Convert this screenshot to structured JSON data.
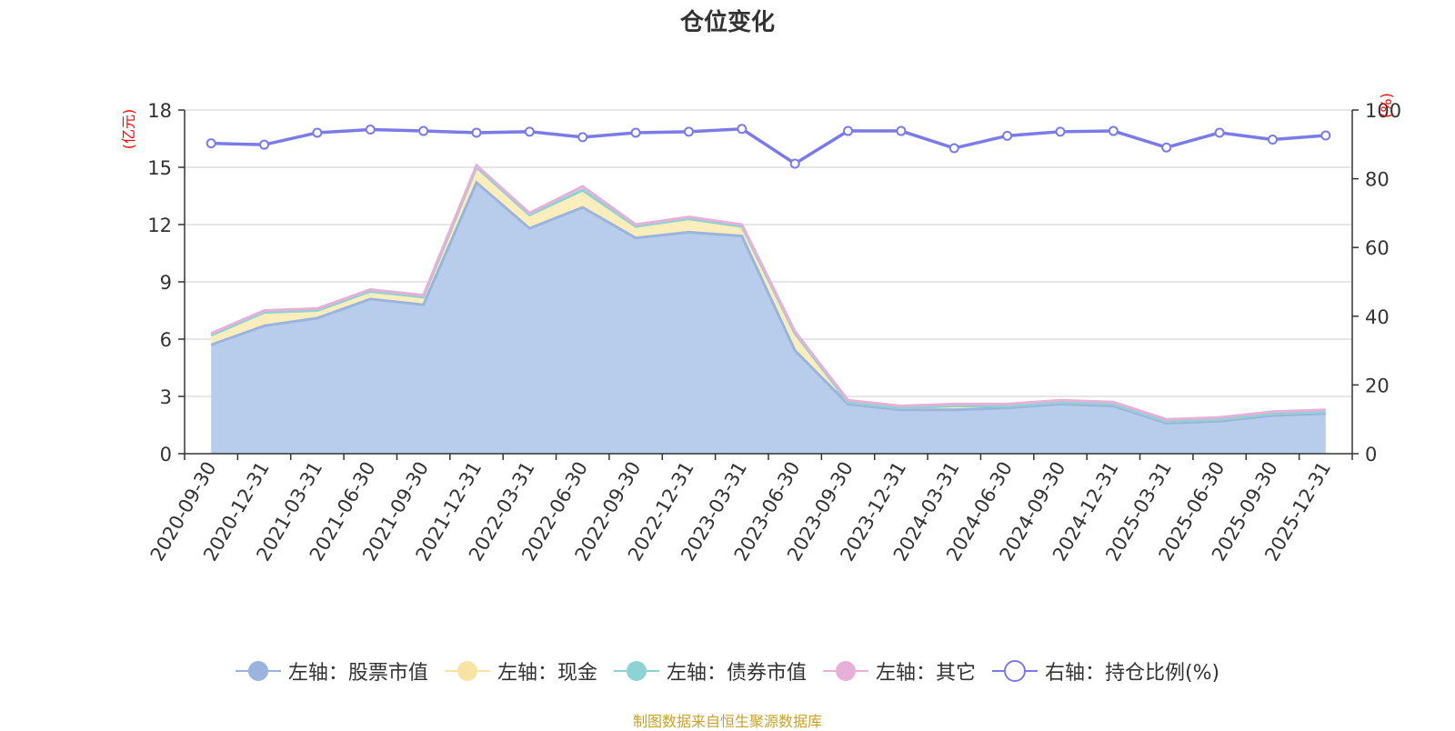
{
  "title": "仓位变化",
  "source": "制图数据来自恒生聚源数据库",
  "left_unit": "(亿元)",
  "right_unit": "(%)",
  "colors": {
    "stock": "#9ab4de",
    "stock_fill": "#b8cceb",
    "cash": "#f7e4a2",
    "cash_fill": "#fbeebc",
    "bond": "#8dd3d3",
    "other": "#e6b0d8",
    "other_fill": "#f2d6ea",
    "ratio": "#7b7be8"
  },
  "legend": [
    {
      "label": "左轴：股票市值",
      "color": "#9ab4de",
      "marker": "filled"
    },
    {
      "label": "左轴：现金",
      "color": "#f7e4a2",
      "marker": "filled"
    },
    {
      "label": "左轴：债券市值",
      "color": "#8dd3d3",
      "marker": "filled"
    },
    {
      "label": "左轴：其它",
      "color": "#e6b0d8",
      "marker": "filled"
    },
    {
      "label": "右轴：持仓比例(%)",
      "color": "#7b7be8",
      "marker": "hollow"
    }
  ],
  "chart_data": {
    "type": "area",
    "title": "仓位变化",
    "categories": [
      "2020-09-30",
      "2020-12-31",
      "2021-03-31",
      "2021-06-30",
      "2021-09-30",
      "2021-12-31",
      "2022-03-31",
      "2022-06-30",
      "2022-09-30",
      "2022-12-31",
      "2023-03-31",
      "2023-06-30",
      "2023-09-30",
      "2023-12-31",
      "2024-03-31",
      "2024-06-30",
      "2024-09-30",
      "2024-12-31",
      "2025-03-31",
      "2025-06-30",
      "2025-09-30",
      "2025-12-31"
    ],
    "left_axis": {
      "label": "(亿元)",
      "ylim": [
        0,
        18
      ],
      "ticks": [
        0,
        3,
        6,
        9,
        12,
        15,
        18
      ]
    },
    "right_axis": {
      "label": "(%)",
      "ylim": [
        0,
        100
      ],
      "ticks": [
        0,
        20,
        40,
        60,
        80,
        100
      ]
    },
    "series": [
      {
        "name": "左轴：股票市值",
        "axis": "left",
        "stacked": true,
        "values": [
          5.7,
          6.7,
          7.1,
          8.1,
          7.8,
          14.2,
          11.8,
          12.9,
          11.3,
          11.6,
          11.4,
          5.4,
          2.6,
          2.3,
          2.3,
          2.4,
          2.6,
          2.5,
          1.6,
          1.7,
          2.0,
          2.1
        ]
      },
      {
        "name": "左轴：现金",
        "axis": "left",
        "stacked": true,
        "values": [
          0.5,
          0.7,
          0.4,
          0.4,
          0.4,
          0.8,
          0.7,
          0.9,
          0.6,
          0.7,
          0.5,
          0.9,
          0.1,
          0.1,
          0.2,
          0.1,
          0.1,
          0.1,
          0.1,
          0.1,
          0.1,
          0.1
        ]
      },
      {
        "name": "左轴：债券市值",
        "axis": "left",
        "stacked": true,
        "values": [
          0,
          0,
          0,
          0,
          0,
          0,
          0,
          0,
          0,
          0,
          0,
          0,
          0,
          0,
          0,
          0,
          0,
          0,
          0,
          0,
          0,
          0
        ]
      },
      {
        "name": "左轴：其它",
        "axis": "left",
        "stacked": true,
        "values": [
          0.1,
          0.1,
          0.1,
          0.1,
          0.1,
          0.1,
          0.1,
          0.2,
          0.1,
          0.1,
          0.1,
          0.1,
          0.1,
          0.1,
          0.1,
          0.1,
          0.1,
          0.1,
          0.1,
          0.1,
          0.1,
          0.1
        ]
      },
      {
        "name": "右轴：持仓比例(%)",
        "axis": "right",
        "type": "line",
        "values": [
          90.3,
          89.9,
          93.4,
          94.3,
          93.9,
          93.4,
          93.7,
          92.1,
          93.4,
          93.7,
          94.5,
          84.4,
          93.9,
          93.9,
          88.9,
          92.5,
          93.7,
          93.9,
          89.1,
          93.4,
          91.4,
          92.6
        ]
      }
    ]
  }
}
